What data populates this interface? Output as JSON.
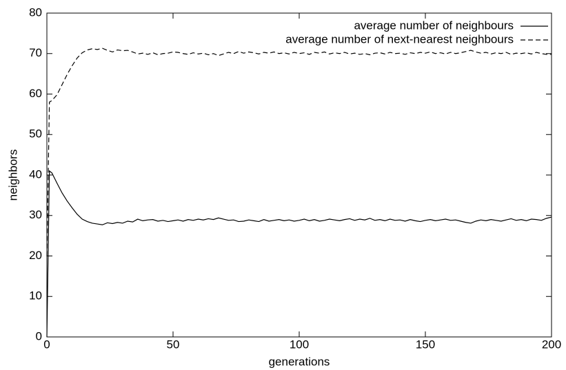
{
  "chart_data": {
    "type": "line",
    "xlabel": "generations",
    "ylabel": "neighbors",
    "legend": "upper right",
    "xlim": [
      0,
      200
    ],
    "ylim": [
      0,
      80
    ],
    "xticks": [
      0,
      50,
      100,
      150,
      200
    ],
    "yticks": [
      0,
      10,
      20,
      30,
      40,
      50,
      60,
      70,
      80
    ],
    "x": [
      0,
      1,
      2,
      4,
      6,
      8,
      10,
      12,
      14,
      16,
      18,
      20,
      22,
      24,
      26,
      28,
      30,
      32,
      34,
      36,
      38,
      40,
      42,
      44,
      46,
      48,
      50,
      52,
      54,
      56,
      58,
      60,
      62,
      64,
      66,
      68,
      70,
      72,
      74,
      76,
      78,
      80,
      82,
      84,
      86,
      88,
      90,
      92,
      94,
      96,
      98,
      100,
      102,
      104,
      106,
      108,
      110,
      112,
      114,
      116,
      118,
      120,
      122,
      124,
      126,
      128,
      130,
      132,
      134,
      136,
      138,
      140,
      142,
      144,
      146,
      148,
      150,
      152,
      154,
      156,
      158,
      160,
      162,
      164,
      166,
      168,
      170,
      172,
      174,
      176,
      178,
      180,
      182,
      184,
      186,
      188,
      190,
      192,
      194,
      196,
      198,
      200
    ],
    "series": [
      {
        "name": "average number of neighbours",
        "color": "#000000",
        "dash": "solid",
        "values": [
          0,
          41,
          40.5,
          38,
          35.6,
          33.6,
          31.9,
          30.3,
          29.1,
          28.5,
          28.1,
          27.9,
          27.7,
          28.2,
          28.0,
          28.3,
          28.1,
          28.6,
          28.4,
          29.1,
          28.7,
          28.9,
          29.0,
          28.6,
          28.8,
          28.5,
          28.7,
          28.9,
          28.6,
          29.0,
          28.8,
          29.1,
          28.9,
          29.2,
          29.0,
          29.4,
          29.1,
          28.8,
          28.9,
          28.5,
          28.6,
          28.9,
          28.7,
          28.5,
          29.0,
          28.6,
          28.8,
          29.0,
          28.7,
          28.9,
          28.6,
          28.8,
          29.1,
          28.7,
          29.0,
          28.6,
          28.8,
          29.1,
          28.9,
          28.7,
          29.0,
          29.2,
          28.8,
          29.1,
          28.9,
          29.3,
          28.8,
          29.0,
          28.7,
          29.1,
          28.8,
          28.9,
          28.6,
          29.0,
          28.7,
          28.5,
          28.8,
          29.0,
          28.7,
          28.9,
          29.1,
          28.8,
          28.9,
          28.6,
          28.3,
          28.1,
          28.6,
          28.9,
          28.7,
          29.0,
          28.8,
          28.6,
          28.9,
          29.2,
          28.8,
          29.0,
          28.7,
          29.1,
          29.0,
          28.8,
          29.3,
          29.6
        ]
      },
      {
        "name": "average number of next-nearest neighbours",
        "color": "#000000",
        "dash": "dashed",
        "values": [
          20,
          58,
          58.4,
          59.8,
          62.3,
          64.8,
          67.0,
          68.9,
          70.2,
          70.9,
          71.2,
          71.0,
          71.3,
          70.8,
          70.4,
          70.9,
          70.7,
          70.8,
          70.4,
          69.9,
          70.1,
          69.8,
          70.2,
          69.7,
          70.0,
          70.1,
          70.4,
          70.3,
          70.0,
          69.8,
          70.2,
          69.9,
          70.1,
          69.7,
          70.0,
          69.5,
          69.9,
          70.3,
          70.0,
          70.5,
          70.1,
          70.4,
          70.2,
          69.9,
          70.3,
          70.1,
          70.4,
          70.0,
          70.2,
          69.9,
          70.3,
          70.0,
          70.2,
          69.8,
          70.3,
          70.1,
          70.4,
          69.9,
          70.2,
          70.0,
          70.3,
          69.9,
          70.1,
          69.8,
          70.0,
          69.7,
          70.1,
          70.2,
          69.9,
          70.3,
          70.0,
          70.1,
          69.8,
          70.2,
          70.0,
          70.3,
          70.1,
          70.4,
          70.0,
          70.2,
          69.9,
          70.3,
          70.0,
          70.2,
          70.5,
          70.8,
          70.4,
          70.1,
          70.3,
          69.9,
          70.2,
          70.0,
          70.3,
          69.8,
          70.1,
          70.0,
          70.2,
          69.9,
          70.3,
          70.0,
          69.8,
          69.8
        ]
      }
    ]
  }
}
